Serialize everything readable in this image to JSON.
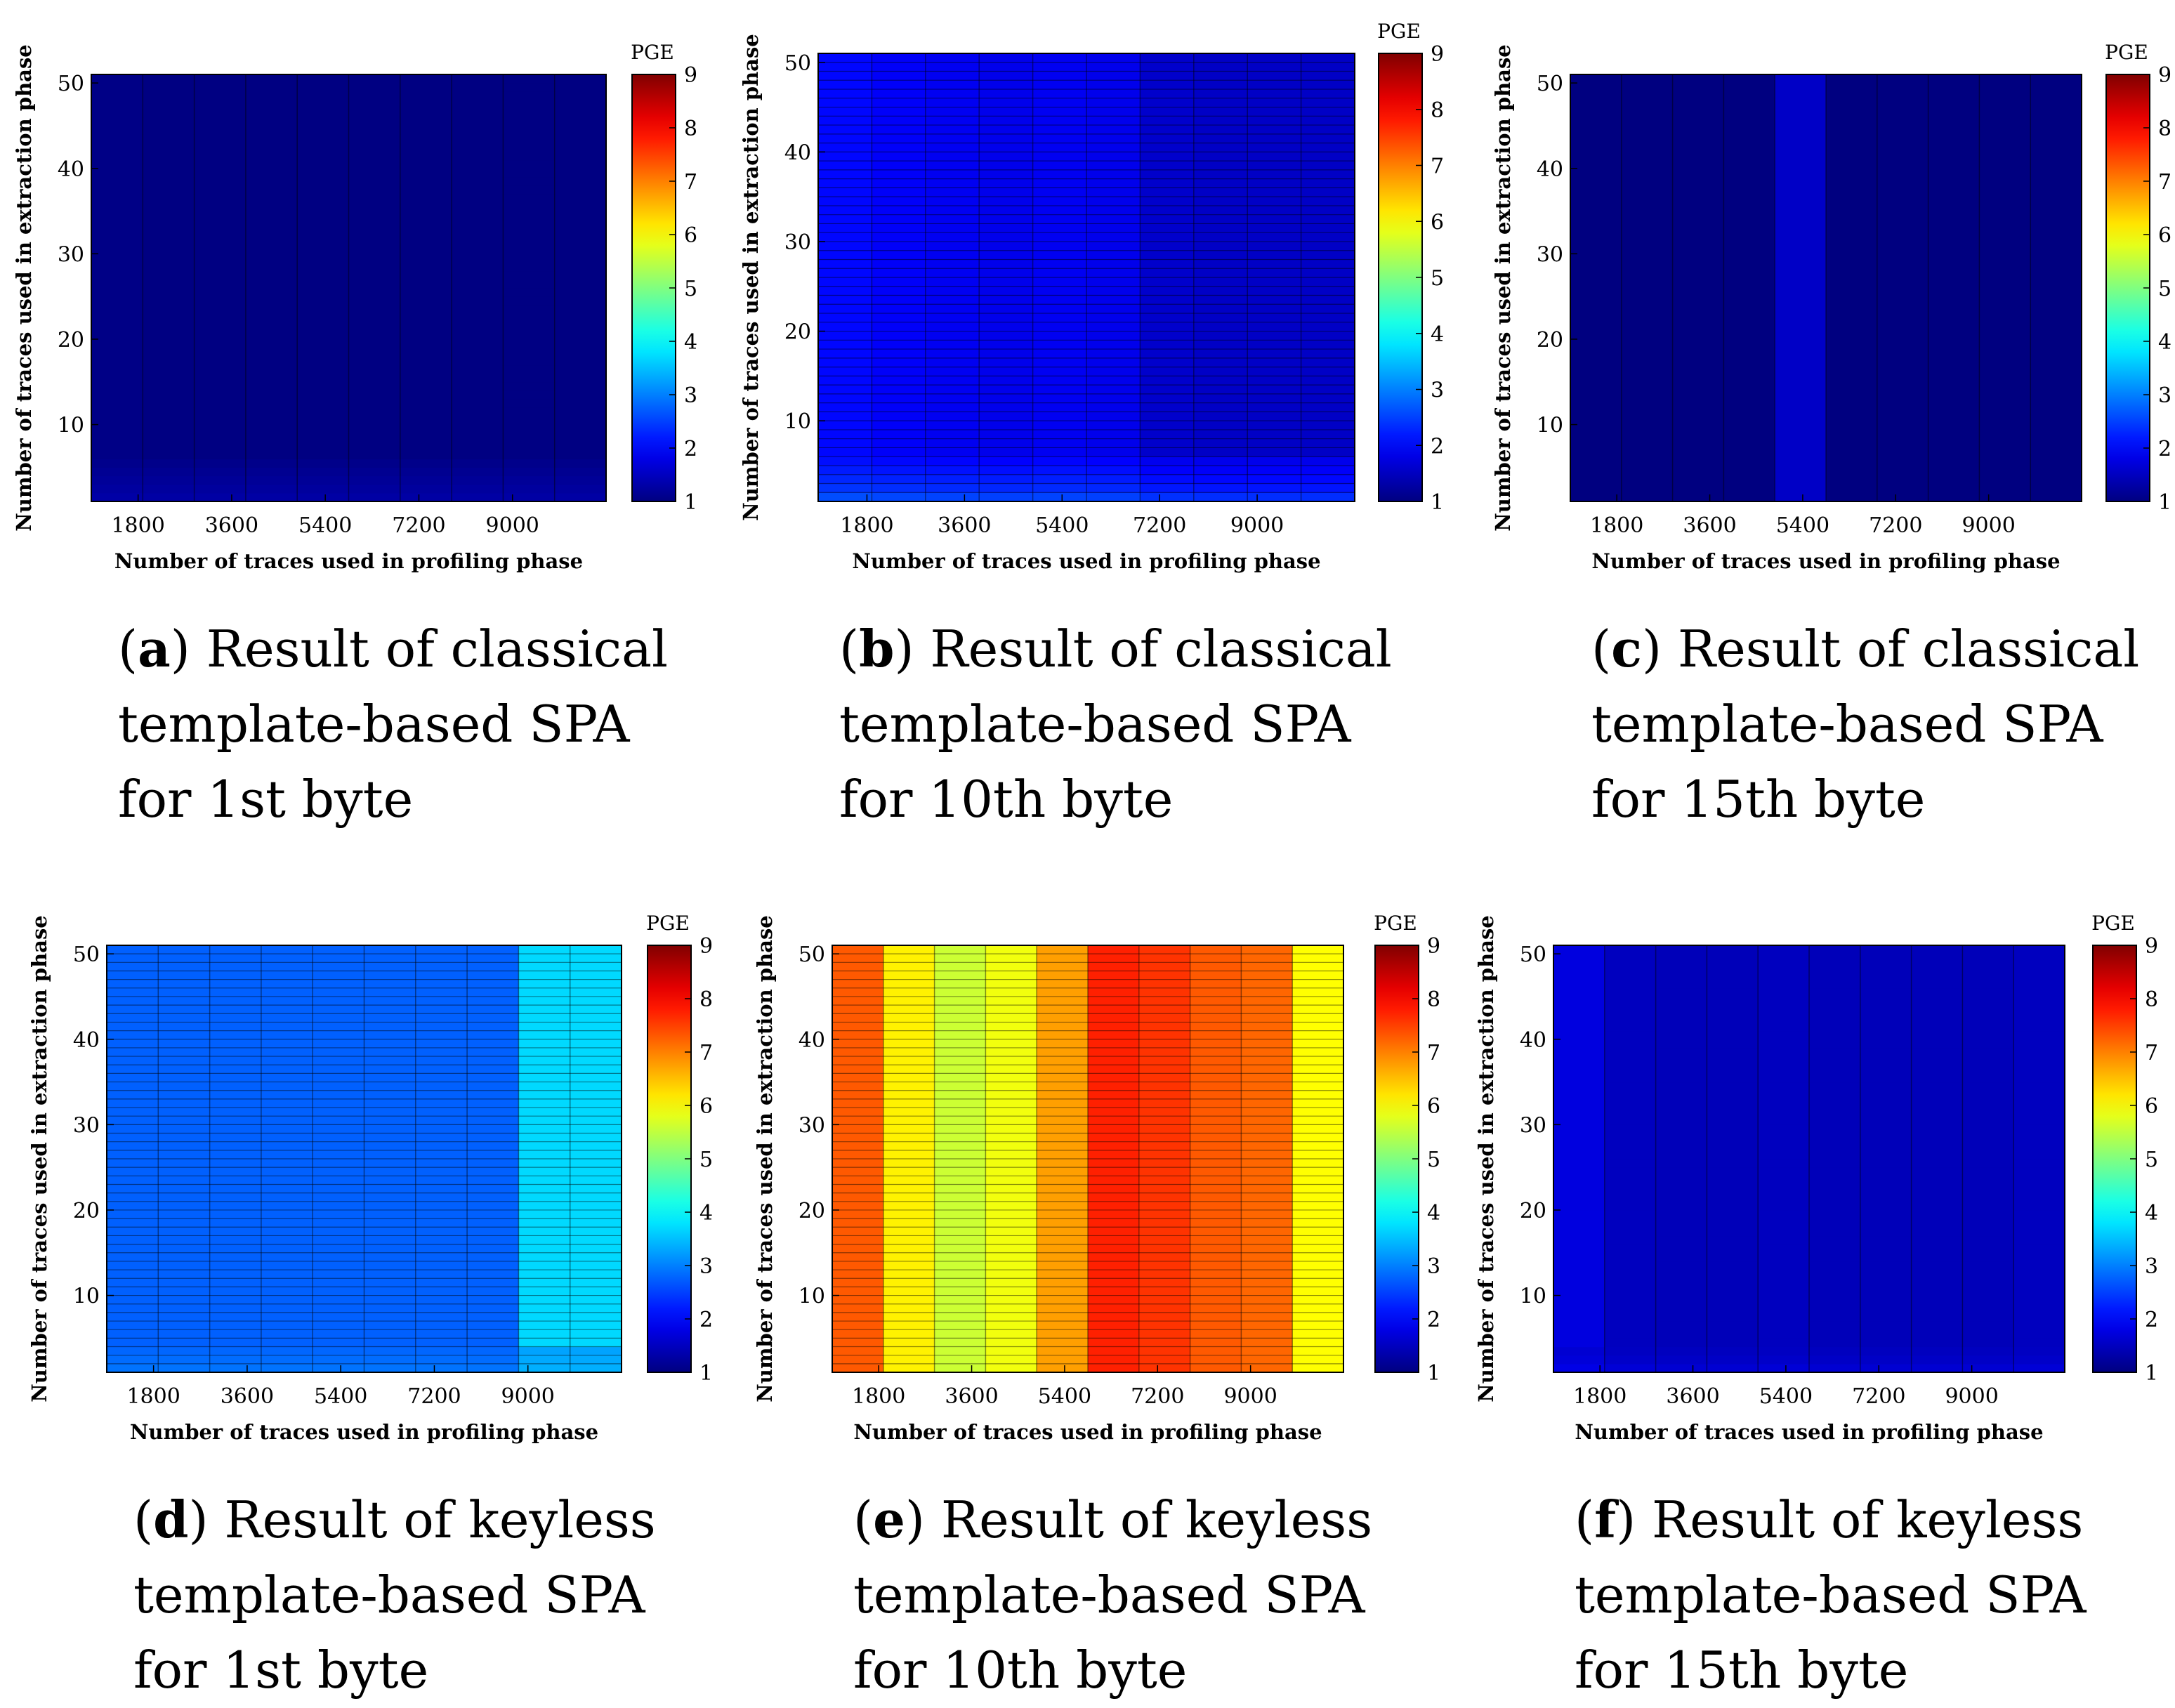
{
  "chart_data": [
    {
      "id": "a",
      "type": "heatmap",
      "title": "",
      "xlabel": "Number of traces used in profiling phase",
      "ylabel": "Number of traces used in extraction phase",
      "x_range": [
        900,
        10800
      ],
      "y_range": [
        1,
        51
      ],
      "x_ticks": [
        1800,
        3600,
        5400,
        7200,
        9000
      ],
      "y_ticks": [
        10,
        20,
        30,
        40,
        50
      ],
      "colorbar": {
        "label": "PGE",
        "min": 1,
        "max": 9,
        "ticks": [
          1,
          2,
          3,
          4,
          5,
          6,
          7,
          8,
          9
        ],
        "colormap": "jet"
      },
      "columns": 10,
      "rows": 50,
      "row_lines": false,
      "column_values": [
        1.05,
        1.02,
        1.02,
        1.02,
        1.02,
        1.02,
        1.02,
        1.02,
        1.03,
        1.02
      ],
      "low_row_values": [
        1.3,
        1.25,
        1.2,
        1.15,
        1.1
      ],
      "caption": {
        "label": "a",
        "lines": [
          "Result of classical",
          "template-based SPA",
          "for 1st byte"
        ]
      }
    },
    {
      "id": "b",
      "type": "heatmap",
      "title": "",
      "xlabel": "Number of traces used in profiling phase",
      "ylabel": "Number of traces used in extraction phase",
      "x_range": [
        900,
        10800
      ],
      "y_range": [
        1,
        51
      ],
      "x_ticks": [
        1800,
        3600,
        5400,
        7200,
        9000
      ],
      "y_ticks": [
        10,
        20,
        30,
        40,
        50
      ],
      "colorbar": {
        "label": "PGE",
        "min": 1,
        "max": 9,
        "ticks": [
          1,
          2,
          3,
          4,
          5,
          6,
          7,
          8,
          9
        ],
        "colormap": "jet"
      },
      "columns": 10,
      "rows": 50,
      "row_lines": true,
      "column_values": [
        2.05,
        1.95,
        1.9,
        1.85,
        1.9,
        1.85,
        1.6,
        1.55,
        1.55,
        1.55
      ],
      "low_row_values": [
        2.6,
        2.4,
        2.3,
        2.2,
        2.1
      ],
      "caption": {
        "label": "b",
        "lines": [
          "Result of classical",
          "template-based SPA",
          "for 10th byte"
        ]
      }
    },
    {
      "id": "c",
      "type": "heatmap",
      "title": "",
      "xlabel": "Number of traces used in profiling phase",
      "ylabel": "Number of traces used in extraction phase",
      "x_range": [
        900,
        10800
      ],
      "y_range": [
        1,
        51
      ],
      "x_ticks": [
        1800,
        3600,
        5400,
        7200,
        9000
      ],
      "y_ticks": [
        10,
        20,
        30,
        40,
        50
      ],
      "colorbar": {
        "label": "PGE",
        "min": 1,
        "max": 9,
        "ticks": [
          1,
          2,
          3,
          4,
          5,
          6,
          7,
          8,
          9
        ],
        "colormap": "jet"
      },
      "columns": 10,
      "rows": 50,
      "row_lines": false,
      "column_values": [
        1.0,
        1.0,
        1.0,
        1.0,
        1.55,
        1.0,
        1.0,
        1.0,
        1.0,
        1.0
      ],
      "low_row_values": [],
      "caption": {
        "label": "c",
        "lines": [
          "Result of classical",
          "template-based SPA",
          "for 15th byte"
        ]
      }
    },
    {
      "id": "d",
      "type": "heatmap",
      "title": "",
      "xlabel": "Number of traces used in profiling phase",
      "ylabel": "Number of traces used in extraction phase",
      "x_range": [
        900,
        10800
      ],
      "y_range": [
        1,
        51
      ],
      "x_ticks": [
        1800,
        3600,
        5400,
        7200,
        9000
      ],
      "y_ticks": [
        10,
        20,
        30,
        40,
        50
      ],
      "colorbar": {
        "label": "PGE",
        "min": 1,
        "max": 9,
        "ticks": [
          1,
          2,
          3,
          4,
          5,
          6,
          7,
          8,
          9
        ],
        "colormap": "jet"
      },
      "columns": 10,
      "rows": 50,
      "row_lines": true,
      "column_values": [
        2.75,
        2.75,
        2.75,
        2.75,
        2.75,
        2.75,
        2.75,
        2.75,
        3.7,
        3.7
      ],
      "low_row_values": [
        2.9,
        2.85,
        2.8
      ],
      "caption": {
        "label": "d",
        "lines": [
          "Result of keyless",
          "template-based SPA",
          "for 1st byte"
        ]
      }
    },
    {
      "id": "e",
      "type": "heatmap",
      "title": "",
      "xlabel": "Number of traces used in profiling phase",
      "ylabel": "Number of traces used in extraction phase",
      "x_range": [
        900,
        10800
      ],
      "y_range": [
        1,
        51
      ],
      "x_ticks": [
        1800,
        3600,
        5400,
        7200,
        9000
      ],
      "y_ticks": [
        10,
        20,
        30,
        40,
        50
      ],
      "colorbar": {
        "label": "PGE",
        "min": 1,
        "max": 9,
        "ticks": [
          1,
          2,
          3,
          4,
          5,
          6,
          7,
          8,
          9
        ],
        "colormap": "jet"
      },
      "columns": 10,
      "rows": 50,
      "row_lines": true,
      "column_values": [
        7.3,
        6.1,
        5.6,
        5.9,
        6.75,
        7.75,
        7.6,
        7.3,
        7.2,
        6.0
      ],
      "low_row_values": [],
      "caption": {
        "label": "e",
        "lines": [
          "Result of keyless",
          "template-based SPA",
          "for 10th byte"
        ]
      }
    },
    {
      "id": "f",
      "type": "heatmap",
      "title": "",
      "xlabel": "Number of traces used in profiling phase",
      "ylabel": "Number of traces used in extraction phase",
      "x_range": [
        900,
        10800
      ],
      "y_range": [
        1,
        51
      ],
      "x_ticks": [
        1800,
        3600,
        5400,
        7200,
        9000
      ],
      "y_ticks": [
        10,
        20,
        30,
        40,
        50
      ],
      "colorbar": {
        "label": "PGE",
        "min": 1,
        "max": 9,
        "ticks": [
          1,
          2,
          3,
          4,
          5,
          6,
          7,
          8,
          9
        ],
        "colormap": "jet"
      },
      "columns": 10,
      "rows": 50,
      "row_lines": false,
      "column_values": [
        1.75,
        1.5,
        1.45,
        1.45,
        1.5,
        1.45,
        1.45,
        1.45,
        1.45,
        1.5
      ],
      "low_row_values": [
        1.8,
        1.7,
        1.65
      ],
      "caption": {
        "label": "f",
        "lines": [
          "Result of keyless",
          "template-based SPA",
          "for 15th byte"
        ]
      }
    }
  ]
}
